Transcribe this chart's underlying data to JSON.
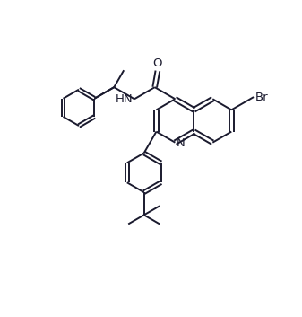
{
  "background_color": "#ffffff",
  "line_color": "#1a1a2e",
  "bond_width": 1.4,
  "font_size": 9.5,
  "figsize": [
    3.37,
    3.53
  ],
  "dpi": 100,
  "xlim": [
    0,
    10
  ],
  "ylim": [
    0,
    10.5
  ]
}
